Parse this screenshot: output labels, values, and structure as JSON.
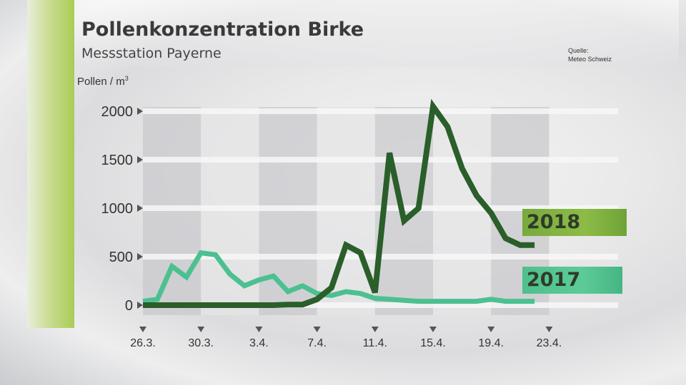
{
  "header": {
    "title": "Pollenkonzentration Birke",
    "subtitle": "Messstation Payerne",
    "source_line1": "Quelle:",
    "source_line2": "Meteo Schweiz"
  },
  "colors": {
    "series_2018": "#2a5e2a",
    "series_2017": "#4cc090",
    "badge_2018": "#86b846",
    "badge_2017": "#56c794",
    "accent": "#a9cc55"
  },
  "chart_data": {
    "type": "line",
    "ylabel_text": "Pollen / m",
    "ylabel_sup": "3",
    "ylim": [
      0,
      2000
    ],
    "yticks": [
      0,
      500,
      1000,
      1500,
      2000
    ],
    "xlim": [
      0,
      27
    ],
    "xticks": [
      {
        "label": "26.3.",
        "day": 0
      },
      {
        "label": "30.3.",
        "day": 4
      },
      {
        "label": "3.4.",
        "day": 8
      },
      {
        "label": "7.4.",
        "day": 12
      },
      {
        "label": "11.4.",
        "day": 16
      },
      {
        "label": "15.4.",
        "day": 20
      },
      {
        "label": "19.4.",
        "day": 24
      },
      {
        "label": "23.4.",
        "day": 28
      }
    ],
    "x_dates": [
      "26.3.",
      "27.3.",
      "28.3.",
      "29.3.",
      "30.3.",
      "31.3.",
      "1.4.",
      "2.4.",
      "3.4.",
      "4.4.",
      "5.4.",
      "6.4.",
      "7.4.",
      "8.4.",
      "9.4.",
      "10.4.",
      "11.4.",
      "12.4.",
      "13.4.",
      "14.4.",
      "15.4.",
      "16.4.",
      "17.4.",
      "18.4.",
      "19.4.",
      "20.4.",
      "21.4.",
      "22.4."
    ],
    "grid": true,
    "series": [
      {
        "name": "2017",
        "values": [
          40,
          60,
          400,
          290,
          540,
          520,
          320,
          200,
          260,
          300,
          140,
          200,
          120,
          100,
          140,
          120,
          70,
          60,
          50,
          40,
          40,
          40,
          40,
          40,
          60,
          40,
          40,
          40
        ]
      },
      {
        "name": "2018",
        "values": [
          0,
          0,
          0,
          0,
          0,
          0,
          0,
          0,
          0,
          0,
          5,
          5,
          60,
          180,
          620,
          540,
          130,
          1570,
          870,
          1000,
          2050,
          1840,
          1410,
          1130,
          950,
          690,
          620,
          620
        ]
      }
    ]
  }
}
